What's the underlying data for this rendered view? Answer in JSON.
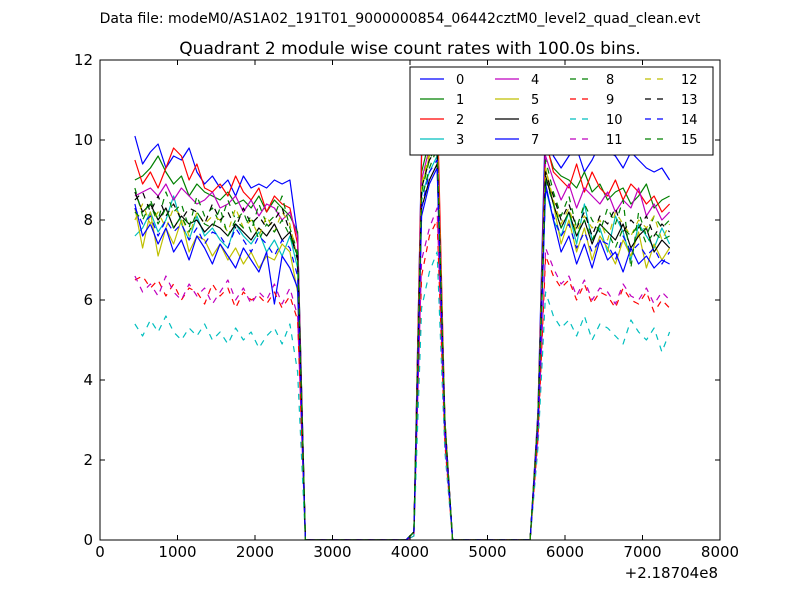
{
  "chart_data": {
    "type": "line",
    "suptitle": "Data file: modeM0/AS1A02_191T01_9000000854_06442cztM0_level2_quad_clean.evt",
    "title": "Quadrant 2 module wise count rates with 100.0s bins.",
    "xlabel": "",
    "ylabel": "",
    "xlim": [
      0,
      8000
    ],
    "ylim": [
      0,
      12
    ],
    "x_offset_label": "+2.18704e8",
    "x_ticks": [
      0,
      1000,
      2000,
      3000,
      4000,
      5000,
      6000,
      7000,
      8000
    ],
    "x_tick_labels": [
      "0",
      "1000",
      "2000",
      "3000",
      "4000",
      "5000",
      "6000",
      "7000",
      "8000"
    ],
    "y_ticks": [
      0,
      2,
      4,
      6,
      8,
      10,
      12
    ],
    "y_tick_labels": [
      "0",
      "2",
      "4",
      "6",
      "8",
      "10",
      "12"
    ],
    "legend": {
      "position": "top-right",
      "columns": 4
    },
    "x_note": "x values are seconds relative to the offset; one point every 100 s from 450 to 7350",
    "x_start": 450,
    "x_step": 100,
    "series": [
      {
        "name": "0",
        "color": "#0000ff",
        "dash": "solid",
        "values": [
          10.1,
          9.4,
          9.7,
          9.9,
          9.3,
          9.6,
          9.5,
          9.8,
          9.2,
          8.9,
          9.1,
          8.8,
          9.0,
          8.6,
          9.1,
          8.8,
          8.9,
          8.8,
          9.0,
          8.9,
          9.0,
          7.6,
          0,
          0,
          0,
          0,
          0,
          0,
          0,
          0,
          0,
          0,
          0,
          0,
          0,
          0,
          0.2,
          9.8,
          10.2,
          9.6,
          3.0,
          0,
          0,
          0,
          0,
          0,
          0,
          0,
          0,
          0,
          0,
          0,
          3.2,
          10.7,
          9.6,
          9.3,
          9.6,
          9.8,
          9.2,
          9.5,
          9.9,
          9.7,
          9.6,
          9.3,
          9.7,
          9.5,
          9.3,
          9.2,
          9.3,
          9.0
        ]
      },
      {
        "name": "1",
        "color": "#008000",
        "dash": "solid",
        "values": [
          9.0,
          9.1,
          9.3,
          9.6,
          9.2,
          8.9,
          9.1,
          8.6,
          8.9,
          8.7,
          8.6,
          8.5,
          8.7,
          8.4,
          8.5,
          8.3,
          8.6,
          8.2,
          8.5,
          8.3,
          8.1,
          7.7,
          0,
          0,
          0,
          0,
          0,
          0,
          0,
          0,
          0,
          0,
          0,
          0,
          0,
          0,
          0.2,
          9.2,
          10.0,
          9.7,
          3.0,
          0,
          0,
          0,
          0,
          0,
          0,
          0,
          0,
          0,
          0,
          0,
          3.0,
          9.9,
          9.3,
          9.1,
          9.0,
          8.8,
          9.2,
          8.7,
          8.9,
          8.5,
          8.7,
          8.8,
          8.4,
          8.6,
          8.9,
          8.3,
          8.5,
          8.6
        ]
      },
      {
        "name": "2",
        "color": "#ff0000",
        "dash": "solid",
        "values": [
          9.5,
          8.9,
          9.2,
          8.8,
          9.3,
          9.8,
          9.6,
          9.0,
          9.4,
          8.8,
          8.7,
          8.9,
          8.6,
          9.1,
          8.7,
          8.5,
          8.8,
          8.2,
          8.6,
          8.4,
          8.3,
          7.4,
          0,
          0,
          0,
          0,
          0,
          0,
          0,
          0,
          0,
          0,
          0,
          0,
          0,
          0,
          0.2,
          9.6,
          10.5,
          11.1,
          3.0,
          0,
          0,
          0,
          0,
          0,
          0,
          0,
          0,
          0,
          0,
          0,
          3.1,
          10.0,
          9.2,
          9.0,
          8.8,
          9.4,
          8.7,
          9.2,
          8.8,
          8.6,
          9.0,
          8.5,
          8.9,
          8.7,
          8.4,
          8.6,
          8.2,
          8.4
        ]
      },
      {
        "name": "3",
        "color": "#00bfbf",
        "dash": "solid",
        "values": [
          7.6,
          7.8,
          8.2,
          7.7,
          8.0,
          8.6,
          7.9,
          7.5,
          8.1,
          7.6,
          7.8,
          7.5,
          7.3,
          7.9,
          7.6,
          7.4,
          7.7,
          7.2,
          7.5,
          7.1,
          7.6,
          6.8,
          0,
          0,
          0,
          0,
          0,
          0,
          0,
          0,
          0,
          0,
          0,
          0,
          0,
          0,
          0.2,
          8.6,
          9.2,
          9.6,
          2.8,
          0,
          0,
          0,
          0,
          0,
          0,
          0,
          0,
          0,
          0,
          0,
          2.9,
          8.8,
          8.0,
          7.6,
          8.2,
          7.4,
          8.4,
          7.5,
          7.8,
          7.2,
          8.1,
          7.7,
          7.0,
          7.9,
          7.6,
          7.3,
          7.8,
          7.4
        ]
      },
      {
        "name": "4",
        "color": "#bf00bf",
        "dash": "solid",
        "values": [
          8.6,
          8.7,
          8.8,
          8.6,
          8.9,
          8.5,
          8.8,
          8.6,
          8.4,
          8.5,
          8.7,
          8.3,
          8.4,
          8.6,
          8.2,
          8.5,
          8.1,
          8.4,
          8.3,
          8.0,
          8.2,
          7.6,
          0,
          0,
          0,
          0,
          0,
          0,
          0,
          0,
          0,
          0,
          0,
          0,
          0,
          0,
          0.2,
          9.0,
          9.8,
          10.3,
          2.9,
          0,
          0,
          0,
          0,
          0,
          0,
          0,
          0,
          0,
          0,
          0,
          3.0,
          9.6,
          9.0,
          8.5,
          8.9,
          8.3,
          8.8,
          8.6,
          8.4,
          8.7,
          8.2,
          8.5,
          8.3,
          8.8,
          8.1,
          8.4,
          8.0,
          8.2
        ]
      },
      {
        "name": "5",
        "color": "#bfbf00",
        "dash": "solid",
        "values": [
          8.3,
          7.3,
          8.2,
          7.1,
          7.8,
          7.4,
          8.0,
          7.2,
          7.6,
          7.5,
          7.1,
          7.4,
          7.0,
          7.3,
          6.9,
          7.2,
          6.8,
          7.1,
          7.0,
          7.4,
          7.2,
          6.2,
          0,
          0,
          0,
          0,
          0,
          0,
          0,
          0,
          0,
          0,
          0,
          0,
          0,
          0,
          0.2,
          8.8,
          9.6,
          10.2,
          2.9,
          0,
          0,
          0,
          0,
          0,
          0,
          0,
          0,
          0,
          0,
          0,
          3.0,
          9.3,
          8.4,
          7.4,
          8.0,
          7.2,
          7.8,
          7.0,
          7.6,
          7.3,
          6.9,
          7.5,
          7.1,
          7.7,
          6.8,
          7.4,
          7.0,
          7.3
        ]
      },
      {
        "name": "6",
        "color": "#000000",
        "dash": "solid",
        "values": [
          8.7,
          8.2,
          8.4,
          8.0,
          8.3,
          7.8,
          8.1,
          7.9,
          8.0,
          7.7,
          7.9,
          7.8,
          7.6,
          7.9,
          7.7,
          7.5,
          7.8,
          7.6,
          7.9,
          7.5,
          7.7,
          7.1,
          0,
          0,
          0,
          0,
          0,
          0,
          0,
          0,
          0,
          0,
          0,
          0,
          0,
          0,
          0.2,
          8.3,
          9.0,
          9.4,
          2.8,
          0,
          0,
          0,
          0,
          0,
          0,
          0,
          0,
          0,
          0,
          0,
          2.9,
          9.1,
          8.4,
          7.8,
          8.2,
          7.6,
          8.0,
          7.4,
          7.9,
          7.7,
          7.5,
          7.9,
          7.3,
          7.6,
          7.8,
          7.2,
          7.5,
          7.3
        ]
      },
      {
        "name": "7",
        "color": "#0000ff",
        "dash": "solid",
        "values": [
          8.4,
          7.6,
          7.9,
          7.4,
          7.8,
          7.2,
          7.5,
          7.0,
          7.6,
          7.3,
          6.9,
          7.4,
          7.1,
          6.8,
          7.3,
          7.0,
          6.7,
          7.2,
          5.9,
          7.1,
          6.8,
          6.3,
          0,
          0,
          0,
          0,
          0,
          0,
          0,
          0,
          0,
          0,
          0,
          0,
          0,
          0,
          0.2,
          8.1,
          8.9,
          9.3,
          2.8,
          0,
          0,
          0,
          0,
          0,
          0,
          0,
          0,
          0,
          0,
          0,
          2.8,
          8.9,
          8.0,
          7.2,
          7.6,
          6.9,
          7.4,
          6.8,
          7.5,
          7.0,
          7.2,
          6.7,
          7.3,
          6.9,
          7.1,
          6.8,
          7.0,
          6.9
        ]
      },
      {
        "name": "8",
        "color": "#008000",
        "dash": "dashed",
        "values": [
          8.8,
          8.1,
          8.5,
          8.0,
          8.7,
          8.2,
          8.4,
          7.8,
          8.6,
          8.1,
          8.3,
          7.9,
          8.5,
          8.0,
          8.2,
          7.7,
          8.4,
          7.9,
          8.1,
          8.6,
          7.8,
          7.2,
          0,
          0,
          0,
          0,
          0,
          0,
          0,
          0,
          0,
          0,
          0,
          0,
          0,
          0,
          0.2,
          8.7,
          9.5,
          9.9,
          2.9,
          0,
          0,
          0,
          0,
          0,
          0,
          0,
          0,
          0,
          0,
          0,
          3.0,
          9.5,
          8.7,
          8.1,
          8.6,
          7.8,
          8.4,
          8.0,
          7.7,
          8.3,
          7.9,
          8.5,
          6.8,
          8.2,
          7.6,
          8.1,
          7.8,
          8.0
        ]
      },
      {
        "name": "9",
        "color": "#ff0000",
        "dash": "dashed",
        "values": [
          6.5,
          6.6,
          6.3,
          6.5,
          6.1,
          6.4,
          6.0,
          6.3,
          6.2,
          5.9,
          6.4,
          6.1,
          6.3,
          5.8,
          6.2,
          6.0,
          6.1,
          5.9,
          6.2,
          5.8,
          6.1,
          5.5,
          0,
          0,
          0,
          0,
          0,
          0,
          0,
          0,
          0,
          0,
          0,
          0,
          0,
          0,
          0.1,
          6.6,
          7.6,
          8.0,
          2.4,
          0,
          0,
          0,
          0,
          0,
          0,
          0,
          0,
          0,
          0,
          0,
          2.5,
          7.1,
          6.6,
          6.3,
          6.5,
          6.0,
          6.4,
          5.9,
          6.2,
          6.1,
          5.8,
          6.3,
          6.0,
          5.9,
          6.2,
          5.7,
          6.0,
          5.8
        ]
      },
      {
        "name": "10",
        "color": "#00bfbf",
        "dash": "dashed",
        "values": [
          5.4,
          5.1,
          5.5,
          5.2,
          5.6,
          5.2,
          5.0,
          5.3,
          5.1,
          5.4,
          5.0,
          5.2,
          4.9,
          5.3,
          5.0,
          5.2,
          4.8,
          5.1,
          5.3,
          4.9,
          5.4,
          4.2,
          0,
          0,
          0,
          0,
          0,
          0,
          0,
          0,
          0,
          0,
          0,
          0,
          0,
          0,
          0.1,
          5.8,
          6.7,
          7.2,
          2.2,
          0,
          0,
          0,
          0,
          0,
          0,
          0,
          0,
          0,
          0,
          0,
          2.3,
          6.2,
          5.6,
          5.3,
          5.5,
          5.1,
          5.6,
          5.0,
          5.4,
          5.3,
          5.1,
          4.9,
          5.5,
          5.2,
          5.0,
          5.3,
          4.7,
          5.2
        ]
      },
      {
        "name": "11",
        "color": "#bf00bf",
        "dash": "dashed",
        "values": [
          6.6,
          6.2,
          6.4,
          6.1,
          6.6,
          6.2,
          6.0,
          6.4,
          6.1,
          6.3,
          5.9,
          6.2,
          6.5,
          6.0,
          6.3,
          5.9,
          6.2,
          6.0,
          6.4,
          5.9,
          6.3,
          5.6,
          0,
          0,
          0,
          0,
          0,
          0,
          0,
          0,
          0,
          0,
          0,
          0,
          0,
          0,
          0.1,
          7.0,
          7.8,
          8.3,
          2.5,
          0,
          0,
          0,
          0,
          0,
          0,
          0,
          0,
          0,
          0,
          0,
          2.6,
          7.3,
          6.8,
          6.4,
          6.6,
          6.1,
          6.5,
          6.0,
          6.3,
          6.2,
          5.9,
          6.4,
          6.1,
          6.0,
          6.3,
          5.9,
          6.2,
          6.0
        ]
      },
      {
        "name": "12",
        "color": "#bfbf00",
        "dash": "dashed",
        "values": [
          8.0,
          8.4,
          7.9,
          8.2,
          7.8,
          8.3,
          8.1,
          7.6,
          8.2,
          7.9,
          8.1,
          8.0,
          7.7,
          8.3,
          7.8,
          8.0,
          7.6,
          8.1,
          7.7,
          8.2,
          7.9,
          7.0,
          0,
          0,
          0,
          0,
          0,
          0,
          0,
          0,
          0,
          0,
          0,
          0,
          0,
          0,
          0.2,
          8.9,
          9.7,
          10.1,
          2.9,
          0,
          0,
          0,
          0,
          0,
          0,
          0,
          0,
          0,
          0,
          0,
          3.0,
          9.3,
          8.5,
          7.9,
          8.3,
          7.7,
          8.1,
          7.8,
          8.0,
          7.5,
          8.2,
          7.9,
          7.6,
          8.0,
          7.8,
          8.1,
          7.5,
          7.9
        ]
      },
      {
        "name": "13",
        "color": "#000000",
        "dash": "dashed",
        "values": [
          8.5,
          8.7,
          8.2,
          8.6,
          8.1,
          8.4,
          8.0,
          8.3,
          8.2,
          7.9,
          8.4,
          8.0,
          8.2,
          7.8,
          8.3,
          7.9,
          8.1,
          7.8,
          8.0,
          8.3,
          7.7,
          7.0,
          0,
          0,
          0,
          0,
          0,
          0,
          0,
          0,
          0,
          0,
          0,
          0,
          0,
          0,
          0.2,
          8.8,
          9.5,
          9.8,
          2.9,
          0,
          0,
          0,
          0,
          0,
          0,
          0,
          0,
          0,
          0,
          0,
          3.0,
          9.2,
          8.6,
          8.0,
          8.4,
          7.8,
          8.2,
          7.6,
          8.1,
          7.9,
          8.3,
          7.7,
          8.0,
          7.8,
          8.1,
          7.6,
          7.9,
          7.7
        ]
      },
      {
        "name": "14",
        "color": "#0000ff",
        "dash": "dashed",
        "values": [
          8.3,
          7.9,
          8.1,
          7.6,
          8.0,
          7.7,
          7.9,
          7.5,
          7.8,
          7.4,
          7.7,
          7.6,
          7.3,
          7.8,
          7.5,
          7.2,
          7.6,
          7.4,
          7.1,
          7.5,
          7.3,
          6.6,
          0,
          0,
          0,
          0,
          0,
          0,
          0,
          0,
          0,
          0,
          0,
          0,
          0,
          0,
          0.2,
          8.3,
          9.2,
          9.5,
          2.8,
          0,
          0,
          0,
          0,
          0,
          0,
          0,
          0,
          0,
          0,
          0,
          2.9,
          8.8,
          8.1,
          7.6,
          7.9,
          7.3,
          7.7,
          7.2,
          7.5,
          7.4,
          7.0,
          7.6,
          7.2,
          7.4,
          7.1,
          7.3,
          6.9,
          7.2
        ]
      },
      {
        "name": "15",
        "color": "#008000",
        "dash": "dashed",
        "values": [
          8.2,
          8.0,
          8.4,
          7.9,
          8.3,
          7.8,
          8.1,
          7.7,
          8.2,
          7.9,
          7.8,
          8.3,
          7.6,
          8.0,
          7.8,
          8.1,
          7.5,
          7.9,
          7.7,
          8.0,
          7.6,
          7.1,
          0,
          0,
          0,
          0,
          0,
          0,
          0,
          0,
          0,
          0,
          0,
          0,
          0,
          0,
          0.2,
          8.5,
          9.3,
          9.8,
          2.9,
          0,
          0,
          0,
          0,
          0,
          0,
          0,
          0,
          0,
          0,
          0,
          3.0,
          9.0,
          8.4,
          7.8,
          8.2,
          7.6,
          8.0,
          7.5,
          7.9,
          7.7,
          7.3,
          7.8,
          7.6,
          7.9,
          7.4,
          7.7,
          7.5,
          7.6
        ]
      }
    ]
  }
}
